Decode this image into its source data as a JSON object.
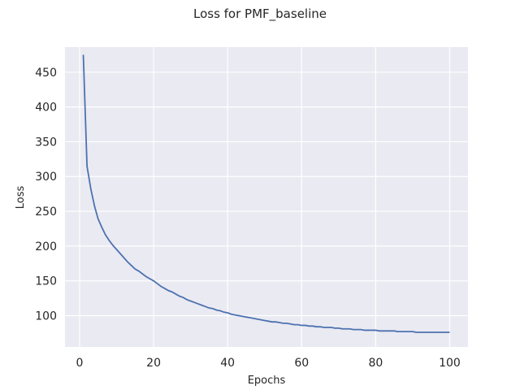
{
  "chart_data": {
    "type": "line",
    "title": "Loss for PMF_baseline",
    "xlabel": "Epochs",
    "ylabel": "Loss",
    "xlim": [
      -3.95,
      104.95
    ],
    "ylim": [
      55,
      486
    ],
    "xticks": [
      0,
      20,
      40,
      60,
      80,
      100
    ],
    "yticks": [
      100,
      150,
      200,
      250,
      300,
      350,
      400,
      450
    ],
    "grid": true,
    "legend": "none",
    "colors": {
      "background": "#eaeaf2",
      "grid": "#ffffff",
      "line": "#4c72b0"
    },
    "series": [
      {
        "x": [
          1,
          2,
          3,
          4,
          5,
          6,
          7,
          8,
          9,
          10,
          11,
          12,
          13,
          14,
          15,
          16,
          17,
          18,
          19,
          20,
          21,
          22,
          23,
          24,
          25,
          26,
          27,
          28,
          29,
          30,
          31,
          32,
          33,
          34,
          35,
          36,
          37,
          38,
          39,
          40,
          41,
          42,
          43,
          44,
          45,
          46,
          47,
          48,
          49,
          50,
          51,
          52,
          53,
          54,
          55,
          56,
          57,
          58,
          59,
          60,
          61,
          62,
          63,
          64,
          65,
          66,
          67,
          68,
          69,
          70,
          71,
          72,
          73,
          74,
          75,
          76,
          77,
          78,
          79,
          80,
          81,
          82,
          83,
          84,
          85,
          86,
          87,
          88,
          89,
          90,
          91,
          92,
          93,
          94,
          95,
          96,
          97,
          98,
          99,
          100
        ],
        "values": [
          475,
          315,
          283,
          258,
          239,
          227,
          216,
          208,
          201,
          195,
          189,
          183,
          177,
          172,
          167,
          164,
          160,
          156,
          153,
          150,
          146,
          142,
          139,
          136,
          134,
          131,
          128,
          126,
          123,
          121,
          119,
          117,
          115,
          113,
          111,
          110,
          108,
          107,
          105,
          104,
          102,
          101,
          100,
          99,
          98,
          97,
          96,
          95,
          94,
          93,
          92,
          91,
          91,
          90,
          89,
          89,
          88,
          87,
          87,
          86,
          86,
          85,
          85,
          84,
          84,
          83,
          83,
          83,
          82,
          82,
          81,
          81,
          81,
          80,
          80,
          80,
          79,
          79,
          79,
          79,
          78,
          78,
          78,
          78,
          78,
          77,
          77,
          77,
          77,
          77,
          76,
          76,
          76,
          76,
          76,
          76,
          76,
          76,
          76,
          76
        ]
      }
    ]
  }
}
